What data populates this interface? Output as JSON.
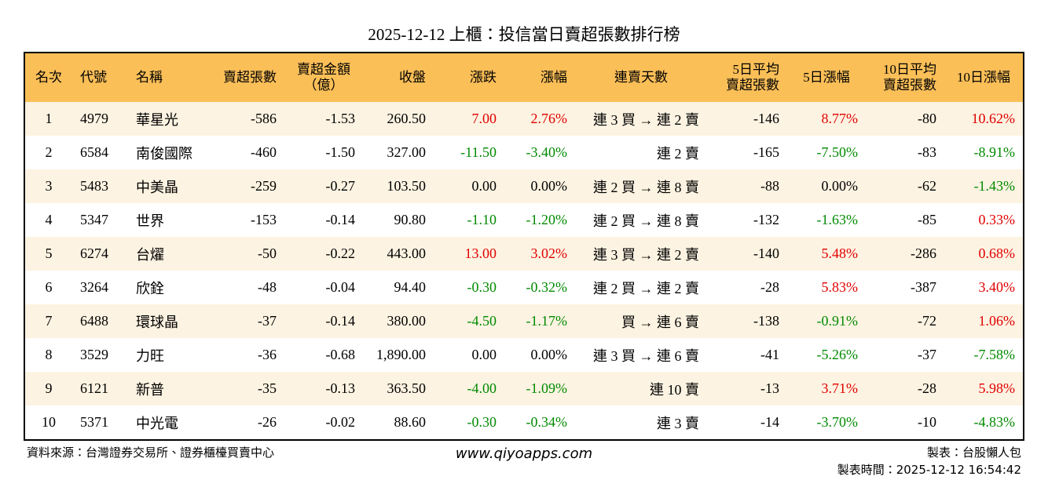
{
  "title": "2025-12-12 上櫃：投信當日賣超張數排行榜",
  "table": {
    "header": [
      "名次",
      "代號",
      "名稱",
      "賣超張數",
      "賣超金額\n（億）",
      "收盤",
      "漲跌",
      "漲幅",
      "連賣天數",
      "5日平均\n賣超張數",
      "5日漲幅",
      "10日平均\n賣超張數",
      "10日漲幅"
    ],
    "rows": [
      [
        "1",
        "4979",
        "華星光",
        "-586",
        "-1.53",
        "260.50",
        "7.00",
        "2.76%",
        "連 3 買 → 連 2 賣",
        "-146",
        "8.77%",
        "-80",
        "10.62%"
      ],
      [
        "2",
        "6584",
        "南俊國際",
        "-460",
        "-1.50",
        "327.00",
        "-11.50",
        "-3.40%",
        "連 2 賣",
        "-165",
        "-7.50%",
        "-83",
        "-8.91%"
      ],
      [
        "3",
        "5483",
        "中美晶",
        "-259",
        "-0.27",
        "103.50",
        "0.00",
        "0.00%",
        "連 2 買 → 連 8 賣",
        "-88",
        "0.00%",
        "-62",
        "-1.43%"
      ],
      [
        "4",
        "5347",
        "世界",
        "-153",
        "-0.14",
        "90.80",
        "-1.10",
        "-1.20%",
        "連 2 買 → 連 8 賣",
        "-132",
        "-1.63%",
        "-85",
        "0.33%"
      ],
      [
        "5",
        "6274",
        "台燿",
        "-50",
        "-0.22",
        "443.00",
        "13.00",
        "3.02%",
        "連 3 買 → 連 2 賣",
        "-140",
        "5.48%",
        "-286",
        "0.68%"
      ],
      [
        "6",
        "3264",
        "欣銓",
        "-48",
        "-0.04",
        "94.40",
        "-0.30",
        "-0.32%",
        "連 2 買 → 連 2 賣",
        "-28",
        "5.83%",
        "-387",
        "3.40%"
      ],
      [
        "7",
        "6488",
        "環球晶",
        "-37",
        "-0.14",
        "380.00",
        "-4.50",
        "-1.17%",
        "買 → 連 6 賣",
        "-138",
        "-0.91%",
        "-72",
        "1.06%"
      ],
      [
        "8",
        "3529",
        "力旺",
        "-36",
        "-0.68",
        "1,890.00",
        "0.00",
        "0.00%",
        "連 3 買 → 連 6 賣",
        "-41",
        "-5.26%",
        "-37",
        "-7.58%"
      ],
      [
        "9",
        "6121",
        "新普",
        "-35",
        "-0.13",
        "363.50",
        "-4.00",
        "-1.09%",
        "連 10 賣",
        "-13",
        "3.71%",
        "-28",
        "5.98%"
      ],
      [
        "10",
        "5371",
        "中光電",
        "-26",
        "-0.02",
        "88.60",
        "-0.30",
        "-0.34%",
        "連 3 賣",
        "-14",
        "-3.70%",
        "-10",
        "-4.83%"
      ]
    ]
  },
  "footer": {
    "source": "資料來源：台灣證券交易所、證券櫃檯買賣中心",
    "site": "www.qiyoapps.com",
    "maker": "製表：台股懶人包",
    "time": "製表時間：2025-12-12 16:54:42"
  }
}
